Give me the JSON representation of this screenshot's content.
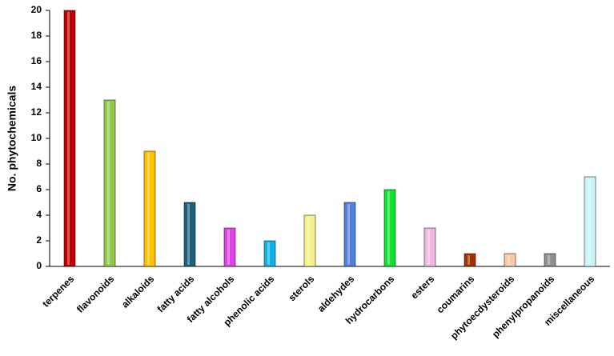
{
  "chart_data": {
    "type": "bar",
    "y_label": "No. phytochemicals",
    "categories": [
      "terpenes",
      "flavonoids",
      "alkaloids",
      "fatty acids",
      "fatty alcohols",
      "phenolic acids",
      "sterols",
      "aldehydes",
      "hydrocarbons",
      "esters",
      "coumarins",
      "phytoecdysteroids",
      "phenylpropanoids",
      "miscellaneous"
    ],
    "values": [
      20,
      13,
      9,
      5,
      3,
      2,
      4,
      5,
      6,
      3,
      1,
      1,
      1,
      7
    ],
    "colors": [
      "#c00000",
      "#92c94a",
      "#ffc000",
      "#1f5f7a",
      "#e040e8",
      "#10b0e8",
      "#f4f08a",
      "#4f7fd8",
      "#10e030",
      "#f0b8e0",
      "#a03000",
      "#f8c8a8",
      "#909090",
      "#c8f4f8"
    ],
    "ylim": [
      0,
      20
    ],
    "yticks": [
      0,
      2,
      4,
      6,
      8,
      10,
      12,
      14,
      16,
      18,
      20
    ],
    "grid": false
  }
}
